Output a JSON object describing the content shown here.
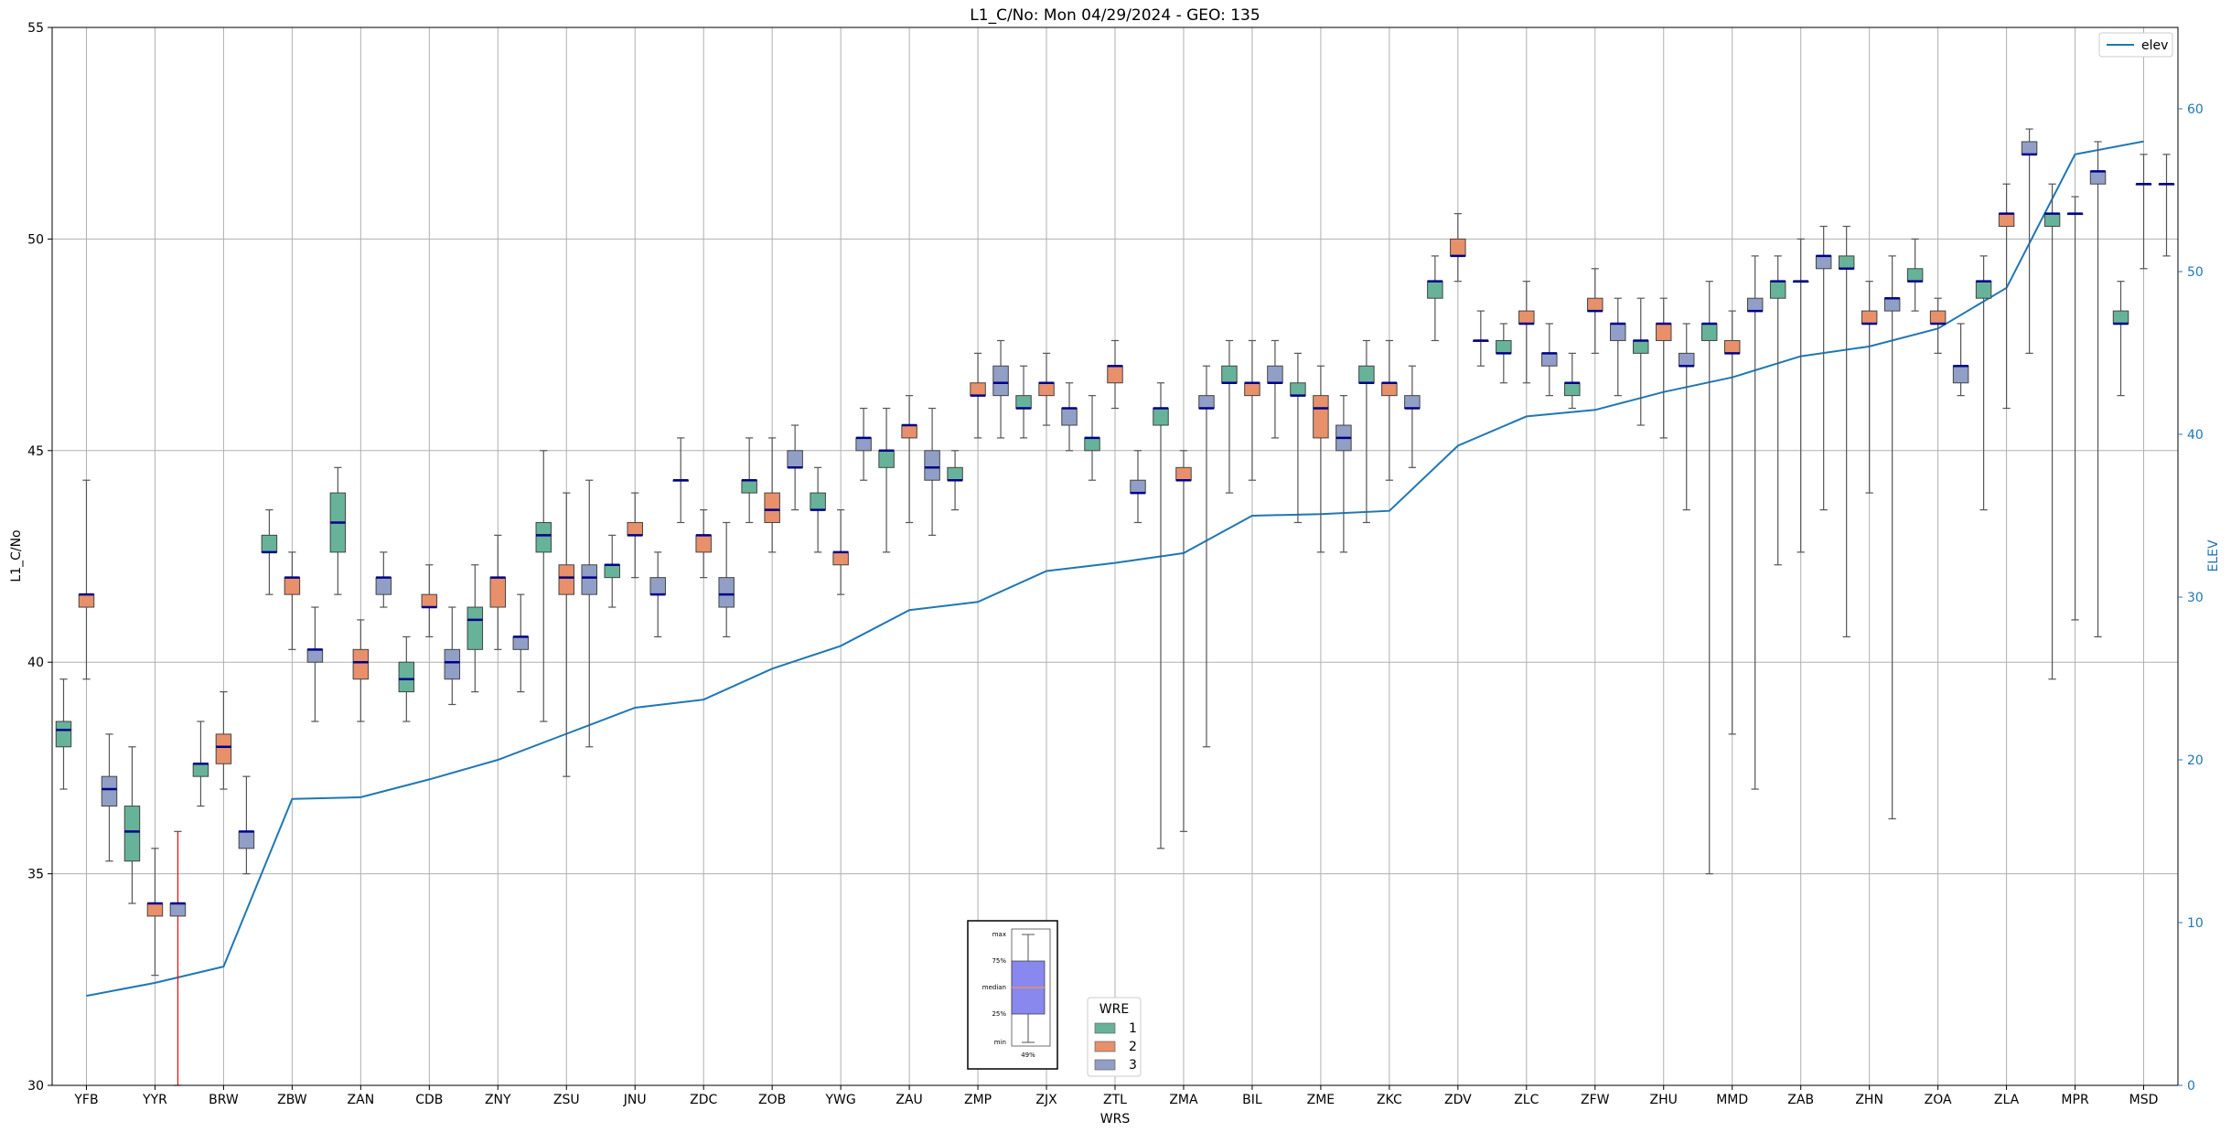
{
  "chart_data": {
    "type": "box",
    "title": "L1_C/No: Mon 04/29/2024 - GEO: 135",
    "xlabel": "WRS",
    "ylabel": "L1_C/No",
    "y2label": "ELEV",
    "ylim": [
      30,
      55
    ],
    "y2lim": [
      0,
      65
    ],
    "yticks": [
      30,
      35,
      40,
      45,
      50,
      55
    ],
    "y2ticks": [
      0,
      10,
      20,
      30,
      40,
      50,
      60
    ],
    "grid": true,
    "colors": {
      "1": "#66b399",
      "2": "#e8906a",
      "3": "#919fc6",
      "median": "#00008b",
      "elev": "#1f77b4",
      "outlier": "#ff0000",
      "whisker": "#555555"
    },
    "legend_wre": {
      "title": "WRE",
      "placement": "bottom-center",
      "entries": [
        {
          "label": "1",
          "wre": "1"
        },
        {
          "label": "2",
          "wre": "2"
        },
        {
          "label": "3",
          "wre": "3"
        }
      ]
    },
    "legend_elev": {
      "label": "elev",
      "placement": "top-right"
    },
    "inset_legend": {
      "labels": [
        "max",
        "75%",
        "median",
        "25%",
        "min"
      ],
      "note": "49%"
    },
    "categories": [
      "YFB",
      "YYR",
      "BRW",
      "ZBW",
      "ZAN",
      "CDB",
      "ZNY",
      "ZSU",
      "JNU",
      "ZDC",
      "ZOB",
      "YWG",
      "ZAU",
      "ZMP",
      "ZJX",
      "ZTL",
      "ZMA",
      "BIL",
      "ZME",
      "ZKC",
      "ZDV",
      "ZLC",
      "ZFW",
      "ZHU",
      "MMD",
      "ZAB",
      "ZHN",
      "ZOA",
      "ZLA",
      "MPR",
      "MSD"
    ],
    "elev": [
      5.5,
      6.3,
      7.3,
      17.6,
      17.7,
      18.8,
      20,
      21.6,
      23.2,
      23.7,
      25.6,
      27,
      29.2,
      29.7,
      31.6,
      32.1,
      32.7,
      35,
      35.1,
      35.3,
      39.3,
      41.1,
      41.5,
      42.6,
      43.5,
      44.8,
      45.4,
      46.5,
      49,
      57.2,
      58
    ],
    "boxes": [
      {
        "cat": "YFB",
        "wre": "1",
        "min": 37.0,
        "q1": 38.0,
        "med": 38.4,
        "q3": 38.6,
        "max": 39.6
      },
      {
        "cat": "YFB",
        "wre": "2",
        "min": 39.6,
        "q1": 41.3,
        "med": 41.6,
        "q3": 41.6,
        "max": 44.3
      },
      {
        "cat": "YFB",
        "wre": "3",
        "min": 35.3,
        "q1": 36.6,
        "med": 37.0,
        "q3": 37.3,
        "max": 38.3
      },
      {
        "cat": "YYR",
        "wre": "1",
        "min": 34.3,
        "q1": 35.3,
        "med": 36.0,
        "q3": 36.6,
        "max": 38.0
      },
      {
        "cat": "YYR",
        "wre": "2",
        "min": 32.6,
        "q1": 34.0,
        "med": 34.3,
        "q3": 34.3,
        "max": 35.6
      },
      {
        "cat": "YYR",
        "wre": "3",
        "min": 30.0,
        "q1": 34.0,
        "med": 34.3,
        "q3": 34.3,
        "max": 36.0,
        "outlier": true
      },
      {
        "cat": "BRW",
        "wre": "1",
        "min": 36.6,
        "q1": 37.3,
        "med": 37.6,
        "q3": 37.6,
        "max": 38.6
      },
      {
        "cat": "BRW",
        "wre": "2",
        "min": 37.0,
        "q1": 37.6,
        "med": 38.0,
        "q3": 38.3,
        "max": 39.3
      },
      {
        "cat": "BRW",
        "wre": "3",
        "min": 35.0,
        "q1": 35.6,
        "med": 36.0,
        "q3": 36.0,
        "max": 37.3
      },
      {
        "cat": "ZBW",
        "wre": "1",
        "min": 41.6,
        "q1": 42.6,
        "med": 42.6,
        "q3": 43.0,
        "max": 43.6
      },
      {
        "cat": "ZBW",
        "wre": "2",
        "min": 40.3,
        "q1": 41.6,
        "med": 42.0,
        "q3": 42.0,
        "max": 42.6
      },
      {
        "cat": "ZBW",
        "wre": "3",
        "min": 38.6,
        "q1": 40.0,
        "med": 40.3,
        "q3": 40.3,
        "max": 41.3
      },
      {
        "cat": "ZAN",
        "wre": "1",
        "min": 41.6,
        "q1": 42.6,
        "med": 43.3,
        "q3": 44.0,
        "max": 44.6
      },
      {
        "cat": "ZAN",
        "wre": "2",
        "min": 38.6,
        "q1": 39.6,
        "med": 40.0,
        "q3": 40.3,
        "max": 41.0
      },
      {
        "cat": "ZAN",
        "wre": "3",
        "min": 41.3,
        "q1": 41.6,
        "med": 42.0,
        "q3": 42.0,
        "max": 42.6
      },
      {
        "cat": "CDB",
        "wre": "1",
        "min": 38.6,
        "q1": 39.3,
        "med": 39.6,
        "q3": 40.0,
        "max": 40.6
      },
      {
        "cat": "CDB",
        "wre": "2",
        "min": 40.6,
        "q1": 41.3,
        "med": 41.3,
        "q3": 41.6,
        "max": 42.3
      },
      {
        "cat": "CDB",
        "wre": "3",
        "min": 39.0,
        "q1": 39.6,
        "med": 40.0,
        "q3": 40.3,
        "max": 41.3
      },
      {
        "cat": "ZNY",
        "wre": "1",
        "min": 39.3,
        "q1": 40.3,
        "med": 41.0,
        "q3": 41.3,
        "max": 42.3
      },
      {
        "cat": "ZNY",
        "wre": "2",
        "min": 40.3,
        "q1": 41.3,
        "med": 42.0,
        "q3": 42.0,
        "max": 43.0
      },
      {
        "cat": "ZNY",
        "wre": "3",
        "min": 39.3,
        "q1": 40.3,
        "med": 40.6,
        "q3": 40.6,
        "max": 41.6
      },
      {
        "cat": "ZSU",
        "wre": "1",
        "min": 38.6,
        "q1": 42.6,
        "med": 43.0,
        "q3": 43.3,
        "max": 45.0
      },
      {
        "cat": "ZSU",
        "wre": "2",
        "min": 37.3,
        "q1": 41.6,
        "med": 42.0,
        "q3": 42.3,
        "max": 44.0
      },
      {
        "cat": "ZSU",
        "wre": "3",
        "min": 38.0,
        "q1": 41.6,
        "med": 42.0,
        "q3": 42.3,
        "max": 44.3
      },
      {
        "cat": "JNU",
        "wre": "1",
        "min": 41.3,
        "q1": 42.0,
        "med": 42.3,
        "q3": 42.3,
        "max": 43.0
      },
      {
        "cat": "JNU",
        "wre": "2",
        "min": 42.0,
        "q1": 43.0,
        "med": 43.0,
        "q3": 43.3,
        "max": 44.0
      },
      {
        "cat": "JNU",
        "wre": "3",
        "min": 40.6,
        "q1": 41.6,
        "med": 41.6,
        "q3": 42.0,
        "max": 42.6
      },
      {
        "cat": "ZDC",
        "wre": "1",
        "min": 43.3,
        "q1": 44.3,
        "med": 44.3,
        "q3": 44.3,
        "max": 45.3
      },
      {
        "cat": "ZDC",
        "wre": "2",
        "min": 42.0,
        "q1": 42.6,
        "med": 43.0,
        "q3": 43.0,
        "max": 43.6
      },
      {
        "cat": "ZDC",
        "wre": "3",
        "min": 40.6,
        "q1": 41.3,
        "med": 41.6,
        "q3": 42.0,
        "max": 43.3
      },
      {
        "cat": "ZOB",
        "wre": "1",
        "min": 43.3,
        "q1": 44.0,
        "med": 44.3,
        "q3": 44.3,
        "max": 45.3
      },
      {
        "cat": "ZOB",
        "wre": "2",
        "min": 42.6,
        "q1": 43.3,
        "med": 43.6,
        "q3": 44.0,
        "max": 45.3
      },
      {
        "cat": "ZOB",
        "wre": "3",
        "min": 43.6,
        "q1": 44.6,
        "med": 44.6,
        "q3": 45.0,
        "max": 45.6
      },
      {
        "cat": "YWG",
        "wre": "1",
        "min": 42.6,
        "q1": 43.6,
        "med": 43.6,
        "q3": 44.0,
        "max": 44.6
      },
      {
        "cat": "YWG",
        "wre": "2",
        "min": 41.6,
        "q1": 42.3,
        "med": 42.6,
        "q3": 42.6,
        "max": 43.6
      },
      {
        "cat": "YWG",
        "wre": "3",
        "min": 44.3,
        "q1": 45.0,
        "med": 45.3,
        "q3": 45.3,
        "max": 46.0
      },
      {
        "cat": "ZAU",
        "wre": "1",
        "min": 42.6,
        "q1": 44.6,
        "med": 45.0,
        "q3": 45.0,
        "max": 46.0
      },
      {
        "cat": "ZAU",
        "wre": "2",
        "min": 43.3,
        "q1": 45.3,
        "med": 45.6,
        "q3": 45.6,
        "max": 46.3
      },
      {
        "cat": "ZAU",
        "wre": "3",
        "min": 43.0,
        "q1": 44.3,
        "med": 44.6,
        "q3": 45.0,
        "max": 46.0
      },
      {
        "cat": "ZMP",
        "wre": "1",
        "min": 43.6,
        "q1": 44.3,
        "med": 44.3,
        "q3": 44.6,
        "max": 45.0
      },
      {
        "cat": "ZMP",
        "wre": "2",
        "min": 45.3,
        "q1": 46.3,
        "med": 46.3,
        "q3": 46.6,
        "max": 47.3
      },
      {
        "cat": "ZMP",
        "wre": "3",
        "min": 45.3,
        "q1": 46.3,
        "med": 46.6,
        "q3": 47.0,
        "max": 47.6
      },
      {
        "cat": "ZJX",
        "wre": "1",
        "min": 45.3,
        "q1": 46.0,
        "med": 46.0,
        "q3": 46.3,
        "max": 47.0
      },
      {
        "cat": "ZJX",
        "wre": "2",
        "min": 45.6,
        "q1": 46.3,
        "med": 46.6,
        "q3": 46.6,
        "max": 47.3
      },
      {
        "cat": "ZJX",
        "wre": "3",
        "min": 45.0,
        "q1": 45.6,
        "med": 46.0,
        "q3": 46.0,
        "max": 46.6
      },
      {
        "cat": "ZTL",
        "wre": "1",
        "min": 44.3,
        "q1": 45.0,
        "med": 45.3,
        "q3": 45.3,
        "max": 46.3
      },
      {
        "cat": "ZTL",
        "wre": "2",
        "min": 46.0,
        "q1": 46.6,
        "med": 47.0,
        "q3": 47.0,
        "max": 47.6
      },
      {
        "cat": "ZTL",
        "wre": "3",
        "min": 43.3,
        "q1": 44.0,
        "med": 44.0,
        "q3": 44.3,
        "max": 45.0
      },
      {
        "cat": "ZMA",
        "wre": "1",
        "min": 35.6,
        "q1": 45.6,
        "med": 46.0,
        "q3": 46.0,
        "max": 46.6
      },
      {
        "cat": "ZMA",
        "wre": "2",
        "min": 36.0,
        "q1": 44.3,
        "med": 44.3,
        "q3": 44.6,
        "max": 45.0
      },
      {
        "cat": "ZMA",
        "wre": "3",
        "min": 38.0,
        "q1": 46.0,
        "med": 46.0,
        "q3": 46.3,
        "max": 47.0
      },
      {
        "cat": "BIL",
        "wre": "1",
        "min": 44.0,
        "q1": 46.6,
        "med": 46.6,
        "q3": 47.0,
        "max": 47.6
      },
      {
        "cat": "BIL",
        "wre": "2",
        "min": 44.3,
        "q1": 46.3,
        "med": 46.6,
        "q3": 46.6,
        "max": 47.6
      },
      {
        "cat": "BIL",
        "wre": "3",
        "min": 45.3,
        "q1": 46.6,
        "med": 46.6,
        "q3": 47.0,
        "max": 47.6
      },
      {
        "cat": "ZME",
        "wre": "1",
        "min": 43.3,
        "q1": 46.3,
        "med": 46.3,
        "q3": 46.6,
        "max": 47.3
      },
      {
        "cat": "ZME",
        "wre": "2",
        "min": 42.6,
        "q1": 45.3,
        "med": 46.0,
        "q3": 46.3,
        "max": 47.0
      },
      {
        "cat": "ZME",
        "wre": "3",
        "min": 42.6,
        "q1": 45.0,
        "med": 45.3,
        "q3": 45.6,
        "max": 46.3
      },
      {
        "cat": "ZKC",
        "wre": "1",
        "min": 43.3,
        "q1": 46.6,
        "med": 46.6,
        "q3": 47.0,
        "max": 47.6
      },
      {
        "cat": "ZKC",
        "wre": "2",
        "min": 44.3,
        "q1": 46.3,
        "med": 46.6,
        "q3": 46.6,
        "max": 47.6
      },
      {
        "cat": "ZKC",
        "wre": "3",
        "min": 44.6,
        "q1": 46.0,
        "med": 46.0,
        "q3": 46.3,
        "max": 47.0
      },
      {
        "cat": "ZDV",
        "wre": "1",
        "min": 47.6,
        "q1": 48.6,
        "med": 49.0,
        "q3": 49.0,
        "max": 49.6
      },
      {
        "cat": "ZDV",
        "wre": "2",
        "min": 49.0,
        "q1": 49.6,
        "med": 49.6,
        "q3": 50.0,
        "max": 50.6
      },
      {
        "cat": "ZDV",
        "wre": "3",
        "min": 47.0,
        "q1": 47.6,
        "med": 47.6,
        "q3": 47.6,
        "max": 48.3
      },
      {
        "cat": "ZLC",
        "wre": "1",
        "min": 46.6,
        "q1": 47.3,
        "med": 47.3,
        "q3": 47.6,
        "max": 48.0
      },
      {
        "cat": "ZLC",
        "wre": "2",
        "min": 46.6,
        "q1": 48.0,
        "med": 48.0,
        "q3": 48.3,
        "max": 49.0
      },
      {
        "cat": "ZLC",
        "wre": "3",
        "min": 46.3,
        "q1": 47.0,
        "med": 47.3,
        "q3": 47.3,
        "max": 48.0
      },
      {
        "cat": "ZFW",
        "wre": "1",
        "min": 46.0,
        "q1": 46.3,
        "med": 46.6,
        "q3": 46.6,
        "max": 47.3
      },
      {
        "cat": "ZFW",
        "wre": "2",
        "min": 47.3,
        "q1": 48.3,
        "med": 48.3,
        "q3": 48.6,
        "max": 49.3
      },
      {
        "cat": "ZFW",
        "wre": "3",
        "min": 46.3,
        "q1": 47.6,
        "med": 48.0,
        "q3": 48.0,
        "max": 48.6
      },
      {
        "cat": "ZHU",
        "wre": "1",
        "min": 45.6,
        "q1": 47.3,
        "med": 47.6,
        "q3": 47.6,
        "max": 48.6
      },
      {
        "cat": "ZHU",
        "wre": "2",
        "min": 45.3,
        "q1": 47.6,
        "med": 48.0,
        "q3": 48.0,
        "max": 48.6
      },
      {
        "cat": "ZHU",
        "wre": "3",
        "min": 43.6,
        "q1": 47.0,
        "med": 47.0,
        "q3": 47.3,
        "max": 48.0
      },
      {
        "cat": "MMD",
        "wre": "1",
        "min": 35.0,
        "q1": 47.6,
        "med": 48.0,
        "q3": 48.0,
        "max": 49.0
      },
      {
        "cat": "MMD",
        "wre": "2",
        "min": 38.3,
        "q1": 47.3,
        "med": 47.3,
        "q3": 47.6,
        "max": 48.3
      },
      {
        "cat": "MMD",
        "wre": "3",
        "min": 37.0,
        "q1": 48.3,
        "med": 48.3,
        "q3": 48.6,
        "max": 49.6
      },
      {
        "cat": "ZAB",
        "wre": "1",
        "min": 42.3,
        "q1": 48.6,
        "med": 49.0,
        "q3": 49.0,
        "max": 49.6
      },
      {
        "cat": "ZAB",
        "wre": "2",
        "min": 42.6,
        "q1": 49.0,
        "med": 49.0,
        "q3": 49.0,
        "max": 50.0
      },
      {
        "cat": "ZAB",
        "wre": "3",
        "min": 43.6,
        "q1": 49.3,
        "med": 49.6,
        "q3": 49.6,
        "max": 50.3
      },
      {
        "cat": "ZHN",
        "wre": "1",
        "min": 40.6,
        "q1": 49.3,
        "med": 49.3,
        "q3": 49.6,
        "max": 50.3
      },
      {
        "cat": "ZHN",
        "wre": "2",
        "min": 44.0,
        "q1": 48.0,
        "med": 48.0,
        "q3": 48.3,
        "max": 49.0
      },
      {
        "cat": "ZHN",
        "wre": "3",
        "min": 36.3,
        "q1": 48.3,
        "med": 48.6,
        "q3": 48.6,
        "max": 49.6
      },
      {
        "cat": "ZOA",
        "wre": "1",
        "min": 48.3,
        "q1": 49.0,
        "med": 49.0,
        "q3": 49.3,
        "max": 50.0
      },
      {
        "cat": "ZOA",
        "wre": "2",
        "min": 47.3,
        "q1": 48.0,
        "med": 48.0,
        "q3": 48.3,
        "max": 48.6
      },
      {
        "cat": "ZOA",
        "wre": "3",
        "min": 46.3,
        "q1": 46.6,
        "med": 47.0,
        "q3": 47.0,
        "max": 48.0
      },
      {
        "cat": "ZLA",
        "wre": "1",
        "min": 43.6,
        "q1": 48.6,
        "med": 49.0,
        "q3": 49.0,
        "max": 49.6
      },
      {
        "cat": "ZLA",
        "wre": "2",
        "min": 46.0,
        "q1": 50.3,
        "med": 50.6,
        "q3": 50.6,
        "max": 51.3
      },
      {
        "cat": "ZLA",
        "wre": "3",
        "min": 47.3,
        "q1": 52.0,
        "med": 52.0,
        "q3": 52.3,
        "max": 52.6
      },
      {
        "cat": "MPR",
        "wre": "1",
        "min": 39.6,
        "q1": 50.3,
        "med": 50.6,
        "q3": 50.6,
        "max": 51.3
      },
      {
        "cat": "MPR",
        "wre": "2",
        "min": 41.0,
        "q1": 50.6,
        "med": 50.6,
        "q3": 50.6,
        "max": 51.0
      },
      {
        "cat": "MPR",
        "wre": "3",
        "min": 40.6,
        "q1": 51.3,
        "med": 51.6,
        "q3": 51.6,
        "max": 52.3
      },
      {
        "cat": "MSD",
        "wre": "1",
        "min": 46.3,
        "q1": 48.0,
        "med": 48.0,
        "q3": 48.3,
        "max": 49.0
      },
      {
        "cat": "MSD",
        "wre": "2",
        "min": 49.3,
        "q1": 51.3,
        "med": 51.3,
        "q3": 51.3,
        "max": 52.0
      },
      {
        "cat": "MSD",
        "wre": "3",
        "min": 49.6,
        "q1": 51.3,
        "med": 51.3,
        "q3": 51.3,
        "max": 52.0
      }
    ]
  }
}
